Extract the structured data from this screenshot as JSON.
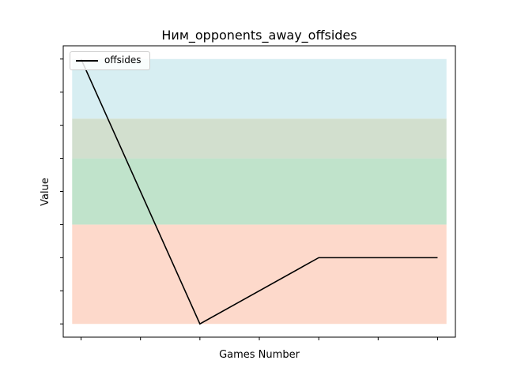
{
  "chart_data": {
    "type": "line",
    "title": "Ним_opponents_away_offsides",
    "xlabel": "Games Number",
    "ylabel": "Value",
    "x": [
      0,
      1,
      2,
      3,
      4,
      5,
      6
    ],
    "series": [
      {
        "name": "offsides",
        "x": [
          0,
          2,
          4,
          6
        ],
        "values": [
          8,
          0,
          2,
          2
        ],
        "color": "#000000"
      }
    ],
    "xlim": [
      -0.3,
      6.3
    ],
    "ylim": [
      -0.4,
      8.4
    ],
    "yticks": [
      0,
      1,
      2,
      3,
      4,
      5,
      6,
      7,
      8
    ],
    "tick_labels_shown": false,
    "bands": [
      {
        "from": 0,
        "to": 3,
        "color": "#fdd9cb"
      },
      {
        "from": 3,
        "to": 5,
        "color": "#c0e3cb"
      },
      {
        "from": 5,
        "to": 6.2,
        "color": "#d2dfce"
      },
      {
        "from": 6.2,
        "to": 8,
        "color": "#d7eef2"
      }
    ],
    "legend": {
      "position": "top-left",
      "entries": [
        "offsides"
      ]
    },
    "grid": false
  }
}
